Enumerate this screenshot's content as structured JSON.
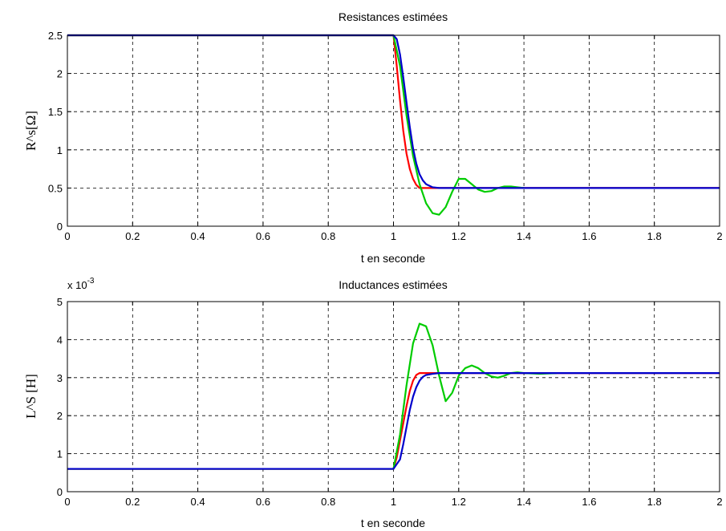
{
  "chart_data": [
    {
      "type": "line",
      "title": "Resistances estimées",
      "xlabel": "t en seconde",
      "ylabel": "R^s[Ω]",
      "xlim": [
        0,
        2
      ],
      "ylim": [
        0,
        2.5
      ],
      "xticks": [
        "0",
        "0.2",
        "0.4",
        "0.6",
        "0.8",
        "1",
        "1.2",
        "1.4",
        "1.6",
        "1.8",
        "2"
      ],
      "yticks": [
        "0",
        "0.5",
        "1",
        "1.5",
        "2",
        "2.5"
      ],
      "grid": true,
      "series": [
        {
          "color": "#ff0000",
          "x": [
            0,
            1.0,
            1.01,
            1.02,
            1.03,
            1.04,
            1.05,
            1.06,
            1.07,
            1.08,
            2.0
          ],
          "y": [
            2.5,
            2.5,
            2.1,
            1.65,
            1.25,
            0.95,
            0.75,
            0.62,
            0.54,
            0.5,
            0.5
          ]
        },
        {
          "color": "#00cc00",
          "x": [
            0,
            1.0,
            1.02,
            1.04,
            1.06,
            1.08,
            1.1,
            1.12,
            1.14,
            1.16,
            1.18,
            1.2,
            1.22,
            1.24,
            1.26,
            1.28,
            1.3,
            1.32,
            1.34,
            1.36,
            1.38,
            1.4
          ],
          "y": [
            2.5,
            2.5,
            2.1,
            1.45,
            0.92,
            0.55,
            0.3,
            0.17,
            0.15,
            0.25,
            0.45,
            0.62,
            0.62,
            0.55,
            0.48,
            0.45,
            0.46,
            0.5,
            0.52,
            0.52,
            0.51,
            0.5
          ]
        },
        {
          "color": "#0000cc",
          "x": [
            0,
            1.0,
            1.01,
            1.02,
            1.03,
            1.04,
            1.05,
            1.06,
            1.07,
            1.08,
            1.09,
            1.1,
            1.12,
            1.14,
            2.0
          ],
          "y": [
            2.5,
            2.5,
            2.45,
            2.25,
            1.95,
            1.62,
            1.3,
            1.02,
            0.82,
            0.68,
            0.6,
            0.55,
            0.51,
            0.5,
            0.5
          ]
        }
      ]
    },
    {
      "type": "line",
      "title": "Inductances estimées",
      "xlabel": "t en seconde",
      "ylabel": "L^S [H]",
      "multiplier": "x 10",
      "multiplier_exp": "-3",
      "xlim": [
        0,
        2
      ],
      "ylim": [
        0,
        5
      ],
      "xticks": [
        "0",
        "0.2",
        "0.4",
        "0.6",
        "0.8",
        "1",
        "1.2",
        "1.4",
        "1.6",
        "1.8",
        "2"
      ],
      "yticks": [
        "0",
        "1",
        "2",
        "3",
        "4",
        "5"
      ],
      "grid": true,
      "series": [
        {
          "color": "#ff0000",
          "x": [
            0,
            1.0,
            1.01,
            1.02,
            1.03,
            1.04,
            1.05,
            1.06,
            1.07,
            1.08,
            2.0
          ],
          "y": [
            0.6,
            0.6,
            0.9,
            1.35,
            1.8,
            2.25,
            2.65,
            2.92,
            3.07,
            3.12,
            3.12
          ]
        },
        {
          "color": "#00cc00",
          "x": [
            0,
            1.0,
            1.02,
            1.04,
            1.06,
            1.08,
            1.1,
            1.12,
            1.14,
            1.16,
            1.18,
            1.2,
            1.22,
            1.24,
            1.26,
            1.28,
            1.3,
            1.32,
            1.34,
            1.36,
            1.38,
            1.4,
            1.45,
            1.5
          ],
          "y": [
            0.6,
            0.6,
            1.5,
            2.8,
            3.9,
            4.42,
            4.35,
            3.85,
            3.05,
            2.38,
            2.6,
            3.05,
            3.25,
            3.32,
            3.25,
            3.12,
            3.03,
            3.0,
            3.05,
            3.12,
            3.14,
            3.12,
            3.1,
            3.12
          ]
        },
        {
          "color": "#0000cc",
          "x": [
            0,
            1.0,
            1.02,
            1.03,
            1.04,
            1.05,
            1.06,
            1.07,
            1.08,
            1.09,
            1.1,
            1.12,
            1.14,
            2.0
          ],
          "y": [
            0.6,
            0.6,
            0.85,
            1.25,
            1.7,
            2.15,
            2.5,
            2.75,
            2.92,
            3.02,
            3.07,
            3.1,
            3.12,
            3.12
          ]
        }
      ]
    }
  ]
}
